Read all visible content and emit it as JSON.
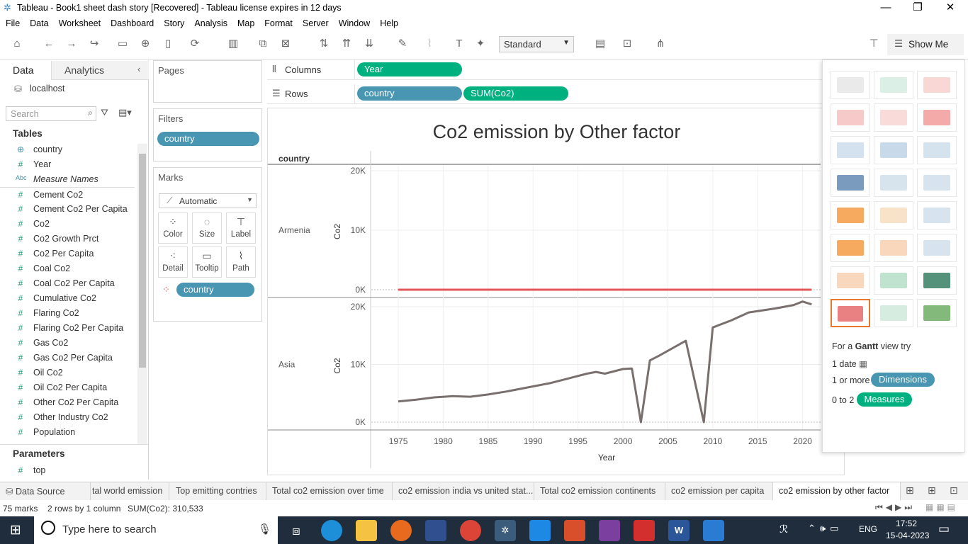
{
  "window": {
    "title": "Tableau - Book1 sheet dash story [Recovered] - Tableau license expires in 12 days",
    "minimize": "—",
    "maximize": "❐",
    "close": "✕"
  },
  "menu": [
    "File",
    "Data",
    "Worksheet",
    "Dashboard",
    "Story",
    "Analysis",
    "Map",
    "Format",
    "Server",
    "Window",
    "Help"
  ],
  "toolbar": {
    "fit_dropdown": "Standard",
    "show_me": "Show Me"
  },
  "data_pane": {
    "tab_data": "Data",
    "tab_analytics": "Analytics",
    "connection": "localhost",
    "search_placeholder": "Search",
    "tables_header": "Tables",
    "fields": [
      {
        "icon": "globe",
        "name": "country",
        "type": "dim"
      },
      {
        "icon": "#",
        "name": "Year",
        "type": "meas"
      },
      {
        "icon": "Abc",
        "name": "Measure Names",
        "type": "dim"
      },
      {
        "icon": "#",
        "name": "Cement Co2",
        "type": "meas"
      },
      {
        "icon": "#",
        "name": "Cement Co2 Per Capita",
        "type": "meas"
      },
      {
        "icon": "#",
        "name": "Co2",
        "type": "meas"
      },
      {
        "icon": "#",
        "name": "Co2 Growth Prct",
        "type": "meas"
      },
      {
        "icon": "#",
        "name": "Co2 Per Capita",
        "type": "meas"
      },
      {
        "icon": "#",
        "name": "Coal Co2",
        "type": "meas"
      },
      {
        "icon": "#",
        "name": "Coal Co2 Per Capita",
        "type": "meas"
      },
      {
        "icon": "#",
        "name": "Cumulative Co2",
        "type": "meas"
      },
      {
        "icon": "#",
        "name": "Flaring Co2",
        "type": "meas"
      },
      {
        "icon": "#",
        "name": "Flaring Co2 Per Capita",
        "type": "meas"
      },
      {
        "icon": "#",
        "name": "Gas Co2",
        "type": "meas"
      },
      {
        "icon": "#",
        "name": "Gas Co2 Per Capita",
        "type": "meas"
      },
      {
        "icon": "#",
        "name": "Oil Co2",
        "type": "meas"
      },
      {
        "icon": "#",
        "name": "Oil Co2 Per Capita",
        "type": "meas"
      },
      {
        "icon": "#",
        "name": "Other Co2 Per Capita",
        "type": "meas"
      },
      {
        "icon": "#",
        "name": "Other Industry Co2",
        "type": "meas"
      },
      {
        "icon": "#",
        "name": "Population",
        "type": "meas"
      }
    ],
    "parameters_header": "Parameters",
    "parameters": [
      {
        "icon": "#",
        "name": "top"
      }
    ]
  },
  "shelves": {
    "pages": "Pages",
    "filters": "Filters",
    "filter_pill": "country",
    "marks": "Marks",
    "mark_type": "Automatic",
    "mark_buttons": [
      "Color",
      "Size",
      "Label",
      "Detail",
      "Tooltip",
      "Path"
    ],
    "marks_pill": "country",
    "columns_label": "Columns",
    "columns_pill": "Year",
    "rows_label": "Rows",
    "rows_pills": [
      "country",
      "SUM(Co2)"
    ]
  },
  "chart_data": {
    "type": "line",
    "title": "Co2 emission by Other factor",
    "xlabel": "Year",
    "ylabel": "Co2",
    "row_header": "country",
    "x_ticks": [
      "1975",
      "1980",
      "1985",
      "1990",
      "1995",
      "2000",
      "2005",
      "2010",
      "2015",
      "2020"
    ],
    "xlim": [
      1972,
      2022
    ],
    "panes": [
      {
        "name": "Armenia",
        "color": "#e15759",
        "ylim": [
          0,
          20000
        ],
        "y_ticks": [
          "0K",
          "10K",
          "20K"
        ],
        "x": [
          1975,
          2021
        ],
        "values": [
          0,
          0
        ]
      },
      {
        "name": "Asia",
        "color": "#79706e",
        "ylim": [
          0,
          20000
        ],
        "y_ticks": [
          "0K",
          "10K",
          "20K"
        ],
        "x": [
          1975,
          1977,
          1979,
          1981,
          1983,
          1985,
          1987,
          1988,
          1990,
          1992,
          1994,
          1996,
          1997,
          1998,
          2000,
          2001,
          2002,
          2003,
          2004,
          2007,
          2009,
          2010,
          2012,
          2014,
          2017,
          2019,
          2020,
          2021
        ],
        "values": [
          3600,
          3900,
          4300,
          4500,
          4400,
          4800,
          5300,
          5600,
          6200,
          6800,
          7600,
          8400,
          8700,
          8400,
          9200,
          9300,
          0,
          10700,
          11500,
          14100,
          0,
          16400,
          17600,
          19000,
          19700,
          20300,
          20900,
          20400
        ]
      }
    ]
  },
  "show_me": {
    "hint_prefix": "For a",
    "hint_chart": "Gantt",
    "hint_suffix": "view try",
    "req1": "1 date",
    "req2_prefix": "1 or more",
    "req2_pill": "Dimensions",
    "req3_prefix": "0 to 2",
    "req3_pill": "Measures"
  },
  "sheet_tabs": [
    "Data Source",
    "tal world emission",
    "Top emitting contries",
    "Total co2 emission over time",
    "co2 emission india vs united stat...",
    "Total co2 emission continents",
    "co2 emission per capita",
    "co2 emission by other factor"
  ],
  "status": {
    "marks": "75 marks",
    "rows_cols": "2 rows by 1 column",
    "sum": "SUM(Co2): 310,533"
  },
  "taskbar": {
    "search_placeholder": "Type here to search",
    "lang": "ENG",
    "time": "17:52",
    "date": "15-04-2023"
  },
  "colors": {
    "dim_pill": "#4996b2",
    "meas_pill": "#00b180",
    "taskbar": "#1f2d3d"
  }
}
